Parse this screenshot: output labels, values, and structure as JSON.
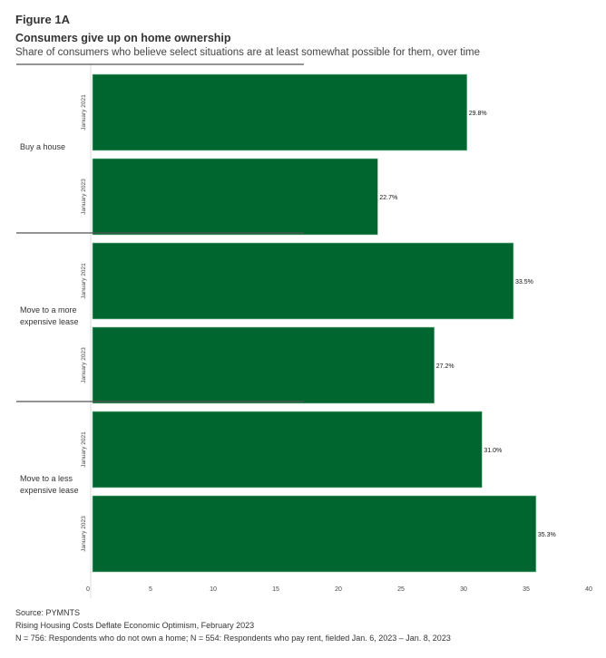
{
  "header": {
    "figure_label": "Figure 1A",
    "title": "Consumers give up on home ownership",
    "subtitle": "Share of consumers who believe select situations are at least somewhat possible for them, over time"
  },
  "chart_data": {
    "type": "bar",
    "orientation": "horizontal",
    "categories": [
      "Buy a house",
      "Move to a more expensive lease",
      "Move to a less expensive lease"
    ],
    "subcategories": [
      "January 2021",
      "January 2023"
    ],
    "values": [
      [
        29.8,
        22.7
      ],
      [
        33.5,
        27.2
      ],
      [
        31.0,
        35.3
      ]
    ],
    "data_labels": [
      [
        "29.8%",
        "22.7%"
      ],
      [
        "33.5%",
        "27.2%"
      ],
      [
        "31.0%",
        "35.3%"
      ]
    ],
    "xlim": [
      0,
      40
    ],
    "xticks": [
      "0",
      "5",
      "10",
      "15",
      "20",
      "25",
      "30",
      "35",
      "40"
    ],
    "grid": false,
    "bar_color": "#00662f"
  },
  "footer": {
    "source": "Source: PYMNTS",
    "report": "Rising Housing Costs Deflate Economic Optimism, February 2023",
    "note": "N = 756: Respondents who do not own a home; N = 554: Respondents who pay rent, fielded Jan. 6, 2023 – Jan. 8, 2023"
  }
}
